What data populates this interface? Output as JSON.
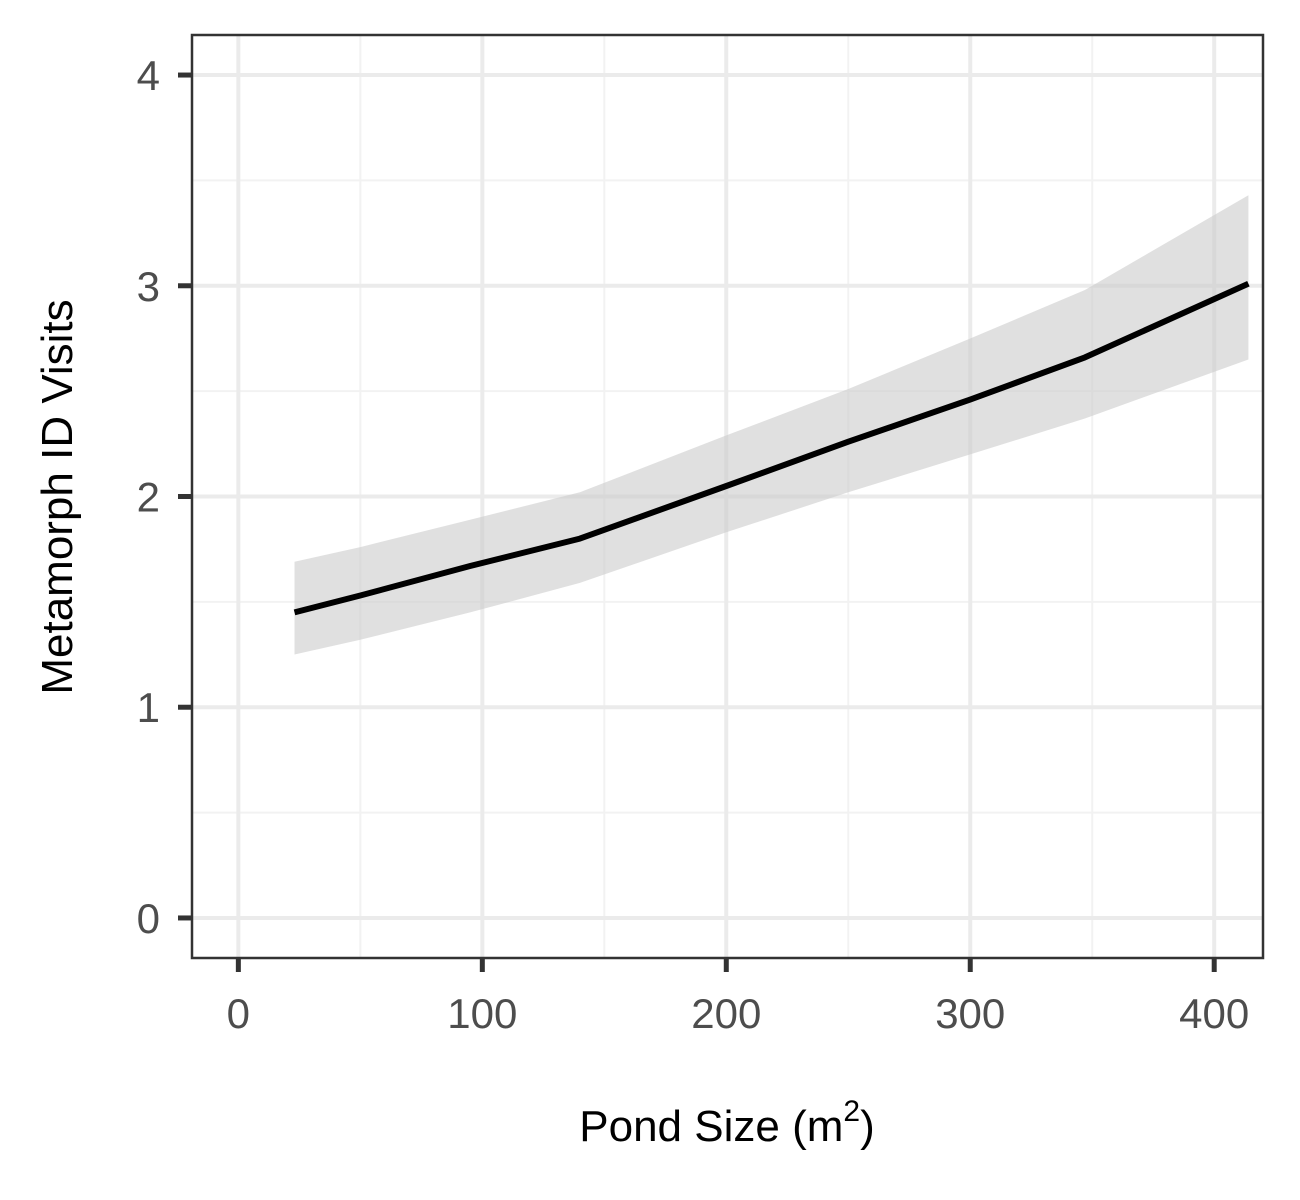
{
  "chart_data": {
    "type": "line",
    "title": "",
    "xlabel": "Pond Size (m",
    "xlabel_superscript": "2",
    "xlabel_suffix": ")",
    "ylabel": "Metamorph ID Visits",
    "xlim": [
      -19,
      420
    ],
    "ylim": [
      -0.19,
      4.19
    ],
    "x_ticks": [
      0,
      100,
      200,
      300,
      400
    ],
    "y_ticks": [
      0,
      1,
      2,
      3,
      4
    ],
    "x_minor": [
      50,
      150,
      250,
      350
    ],
    "y_minor": [
      0.5,
      1.5,
      2.5,
      3.5
    ],
    "grid": true,
    "legend": "none",
    "series": [
      {
        "x": [
          23,
          50,
          95,
          140,
          200,
          250,
          300,
          347,
          414
        ],
        "y": [
          1.45,
          1.53,
          1.67,
          1.8,
          2.05,
          2.26,
          2.46,
          2.66,
          3.01
        ],
        "lower": [
          1.25,
          1.32,
          1.45,
          1.59,
          1.83,
          2.02,
          2.2,
          2.37,
          2.65
        ],
        "upper": [
          1.69,
          1.76,
          1.89,
          2.02,
          2.29,
          2.51,
          2.75,
          2.98,
          3.43
        ]
      }
    ],
    "colors": {
      "line": "#000000",
      "ribbon": "#cccccc",
      "grid_major": "#ebebeb",
      "grid_minor": "#f2f2f2",
      "panel_border": "#333333",
      "tick_text": "#4d4d4d"
    }
  }
}
